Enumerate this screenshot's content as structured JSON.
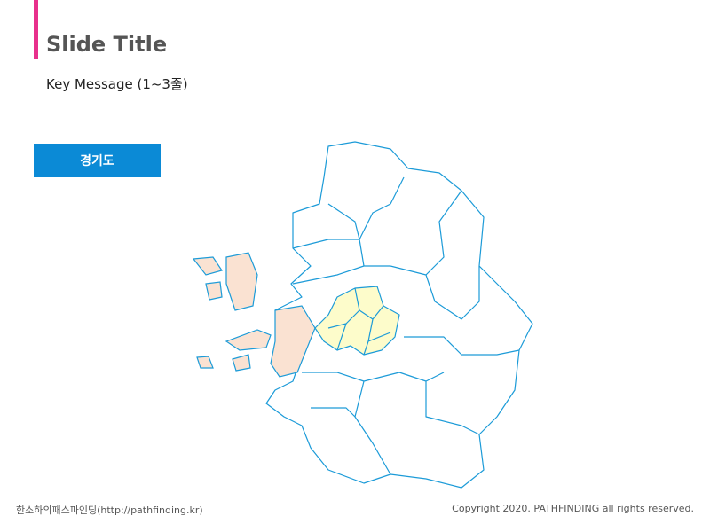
{
  "header": {
    "title": "Slide Title",
    "key_message": "Key Message (1~3줄)"
  },
  "map": {
    "label": "경기도"
  },
  "footer": {
    "left": "한소하의패스파인딩(http://pathfinding.kr)",
    "right": "Copyright 2020. PATHFINDING all rights reserved."
  }
}
